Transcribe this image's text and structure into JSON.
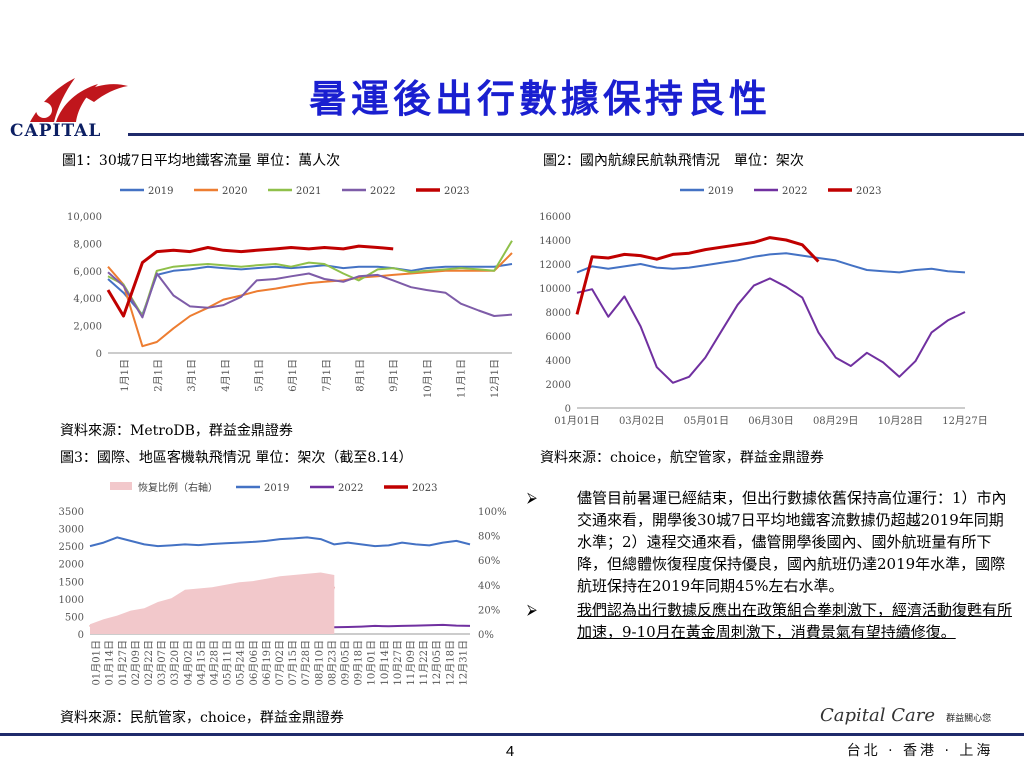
{
  "header": {
    "logo_text": "CAPITAL",
    "title": "暑運後出行數據保持良性"
  },
  "figures": {
    "fig1": {
      "title": "圖1：30城7日平均地鐵客流量 單位：萬人次",
      "source": "資料來源：MetroDB，群益金鼎證券"
    },
    "fig2": {
      "title": "圖2：國內航線民航執飛情況　單位：架次",
      "source": "資料來源：choice，航空管家，群益金鼎證券"
    },
    "fig3": {
      "title": "圖3：國際、地區客機執飛情況 單位：架次（截至8.14）",
      "source": "資料來源：民航管家，choice，群益金鼎證券"
    }
  },
  "chart_data": [
    {
      "type": "line",
      "legend": [
        "2019",
        "2020",
        "2021",
        "2022",
        "2023"
      ],
      "legend_position": "top",
      "colors": [
        "#4472c4",
        "#ed7d31",
        "#8fc04a",
        "#7e5ca8",
        "#c00000"
      ],
      "y_ticks": [
        "0",
        "2,000",
        "4,000",
        "6,000",
        "8,000",
        "10,000"
      ],
      "ylim": [
        0,
        10000
      ],
      "x_ticks": [
        "1月1日",
        "2月1日",
        "3月1日",
        "4月1日",
        "5月1日",
        "6月1日",
        "7月1日",
        "8月1日",
        "9月1日",
        "10月1日",
        "11月1日",
        "12月1日"
      ],
      "x": [
        1,
        15,
        32,
        45,
        60,
        75,
        91,
        105,
        121,
        135,
        152,
        166,
        182,
        196,
        213,
        227,
        244,
        258,
        274,
        288,
        305,
        319,
        335,
        349,
        365
      ],
      "series": [
        {
          "name": "2019",
          "values": [
            5400,
            4400,
            2800,
            5700,
            6000,
            6100,
            6300,
            6200,
            6100,
            6200,
            6300,
            6200,
            6300,
            6400,
            6200,
            6300,
            6300,
            6200,
            6000,
            6200,
            6300,
            6300,
            6300,
            6300,
            6500
          ]
        },
        {
          "name": "2020",
          "values": [
            6300,
            5000,
            500,
            800,
            1800,
            2700,
            3300,
            3900,
            4200,
            4500,
            4700,
            4900,
            5100,
            5200,
            5300,
            5500,
            5600,
            5700,
            5800,
            5900,
            6000,
            6000,
            6000,
            6000,
            7300
          ]
        },
        {
          "name": "2021",
          "values": [
            5600,
            5000,
            2700,
            6000,
            6300,
            6400,
            6500,
            6400,
            6300,
            6400,
            6500,
            6300,
            6600,
            6500,
            5800,
            5300,
            6100,
            6200,
            5900,
            6000,
            6100,
            6200,
            6100,
            6000,
            8200
          ]
        },
        {
          "name": "2022",
          "values": [
            5900,
            4900,
            2600,
            5800,
            4200,
            3400,
            3300,
            3500,
            4100,
            5300,
            5400,
            5600,
            5800,
            5400,
            5200,
            5600,
            5700,
            5300,
            4800,
            4600,
            4400,
            3600,
            3100,
            2700,
            2800
          ]
        },
        {
          "name": "2023",
          "values": [
            4600,
            2700,
            6600,
            7400,
            7500,
            7400,
            7700,
            7500,
            7400,
            7500,
            7600,
            7700,
            7600,
            7700,
            7600,
            7800,
            7700,
            7600,
            null,
            null,
            null,
            null,
            null,
            null,
            null
          ]
        }
      ]
    },
    {
      "type": "line",
      "legend": [
        "2019",
        "2022",
        "2023"
      ],
      "legend_position": "top",
      "colors": [
        "#4472c4",
        "#7030a0",
        "#c00000"
      ],
      "y_ticks": [
        "0",
        "2000",
        "4000",
        "6000",
        "8000",
        "10000",
        "12000",
        "14000",
        "16000"
      ],
      "ylim": [
        0,
        16000
      ],
      "x_ticks": [
        "01月01日",
        "03月02日",
        "05月01日",
        "06月30日",
        "08月29日",
        "10月28日",
        "12月27日"
      ],
      "x": [
        1,
        15,
        30,
        45,
        60,
        75,
        90,
        105,
        120,
        135,
        150,
        165,
        180,
        195,
        210,
        225,
        241,
        255,
        270,
        285,
        300,
        315,
        330,
        345,
        361
      ],
      "series": [
        {
          "name": "2019",
          "values": [
            11300,
            11800,
            11600,
            11800,
            12000,
            11700,
            11600,
            11700,
            11900,
            12100,
            12300,
            12600,
            12800,
            12900,
            12700,
            12500,
            12300,
            11900,
            11500,
            11400,
            11300,
            11500,
            11600,
            11400,
            11300
          ]
        },
        {
          "name": "2022",
          "values": [
            9600,
            9900,
            7600,
            9300,
            6800,
            3400,
            2100,
            2600,
            4200,
            6400,
            8600,
            10200,
            10800,
            10100,
            9200,
            6300,
            4200,
            3500,
            4600,
            3800,
            2600,
            3900,
            6300,
            7300,
            8000
          ]
        },
        {
          "name": "2023",
          "values": [
            7800,
            12600,
            12500,
            12800,
            12700,
            12400,
            12800,
            12900,
            13200,
            13400,
            13600,
            13800,
            14200,
            14000,
            13600,
            12200,
            null,
            null,
            null,
            null,
            null,
            null,
            null,
            null,
            null
          ]
        }
      ]
    },
    {
      "type": "line",
      "legend": [
        "恢复比例（右軸）",
        "2019",
        "2022",
        "2023"
      ],
      "legend_position": "top",
      "colors": [
        "#f2c8cb",
        "#4472c4",
        "#7030a0",
        "#c00000"
      ],
      "y_ticks": [
        "0",
        "500",
        "1000",
        "1500",
        "2000",
        "2500",
        "3000",
        "3500"
      ],
      "ylim": [
        0,
        3500
      ],
      "y2_ticks": [
        "0%",
        "20%",
        "40%",
        "60%",
        "80%",
        "100%"
      ],
      "y2lim": [
        0,
        100
      ],
      "x_ticks": [
        "01月01日",
        "01月14日",
        "01月27日",
        "02月09日",
        "02月22日",
        "03月07日",
        "03月20日",
        "04月02日",
        "04月15日",
        "04月28日",
        "05月11日",
        "05月24日",
        "06月06日",
        "06月19日",
        "07月02日",
        "07月15日",
        "07月28日",
        "08月10日",
        "08月23日",
        "09月05日",
        "09月18日",
        "10月01日",
        "10月14日",
        "10月27日",
        "11月09日",
        "11月22日",
        "12月05日",
        "12月18日",
        "12月31日"
      ],
      "x": [
        1,
        14,
        27,
        40,
        53,
        66,
        79,
        92,
        105,
        118,
        131,
        144,
        157,
        170,
        183,
        196,
        209,
        222,
        235,
        248,
        261,
        274,
        287,
        300,
        313,
        326,
        339,
        352,
        365
      ],
      "series": [
        {
          "name": "2019",
          "values": [
            2500,
            2600,
            2750,
            2650,
            2550,
            2500,
            2520,
            2550,
            2530,
            2560,
            2580,
            2600,
            2620,
            2650,
            2700,
            2720,
            2750,
            2700,
            2550,
            2600,
            2550,
            2500,
            2520,
            2600,
            2550,
            2520,
            2600,
            2650,
            2550
          ]
        },
        {
          "name": "2022",
          "values": [
            150,
            160,
            170,
            160,
            150,
            140,
            130,
            130,
            120,
            120,
            130,
            140,
            150,
            160,
            170,
            180,
            190,
            180,
            190,
            200,
            210,
            230,
            220,
            230,
            240,
            250,
            260,
            240,
            230
          ]
        },
        {
          "name": "2023",
          "values": [
            200,
            300,
            400,
            500,
            550,
            650,
            700,
            850,
            900,
            950,
            1000,
            1050,
            1100,
            1200,
            1250,
            1300,
            1350,
            1380,
            1300,
            null,
            null,
            null,
            null,
            null,
            null,
            null,
            null,
            null,
            null
          ]
        },
        {
          "name": "恢复比例（右軸）",
          "values": [
            8,
            12,
            15,
            19,
            21,
            26,
            29,
            36,
            37,
            38,
            40,
            42,
            43,
            45,
            47,
            48,
            49,
            50,
            48,
            null,
            null,
            null,
            null,
            null,
            null,
            null,
            null,
            null,
            null
          ]
        }
      ]
    }
  ],
  "bullets": [
    {
      "mark": "⮚",
      "text": "儘管目前暑運已經結束，但出行數據依舊保持高位運行：1）市內交通來看，開學後30城7日平均地鐵客流數據仍超越2019年同期水準；2）遠程交通來看，儘管開學後國內、國外航班量有所下降，但總體恢復程度保持優良，國內航班仍達2019年水準，國際航班保持在2019年同期45%左右水準。"
    },
    {
      "mark": "⮚",
      "text": "我們認為出行數據反應出在政策組合拳刺激下，經濟活動復甦有所加速，9-10月在黃金周刺激下，消費景氣有望持續修復。"
    }
  ],
  "footer": {
    "brand_script": "Capital Care",
    "brand_slogan": "群益關心您",
    "page_number": "4",
    "cities": "台北 · 香港 · 上海"
  }
}
